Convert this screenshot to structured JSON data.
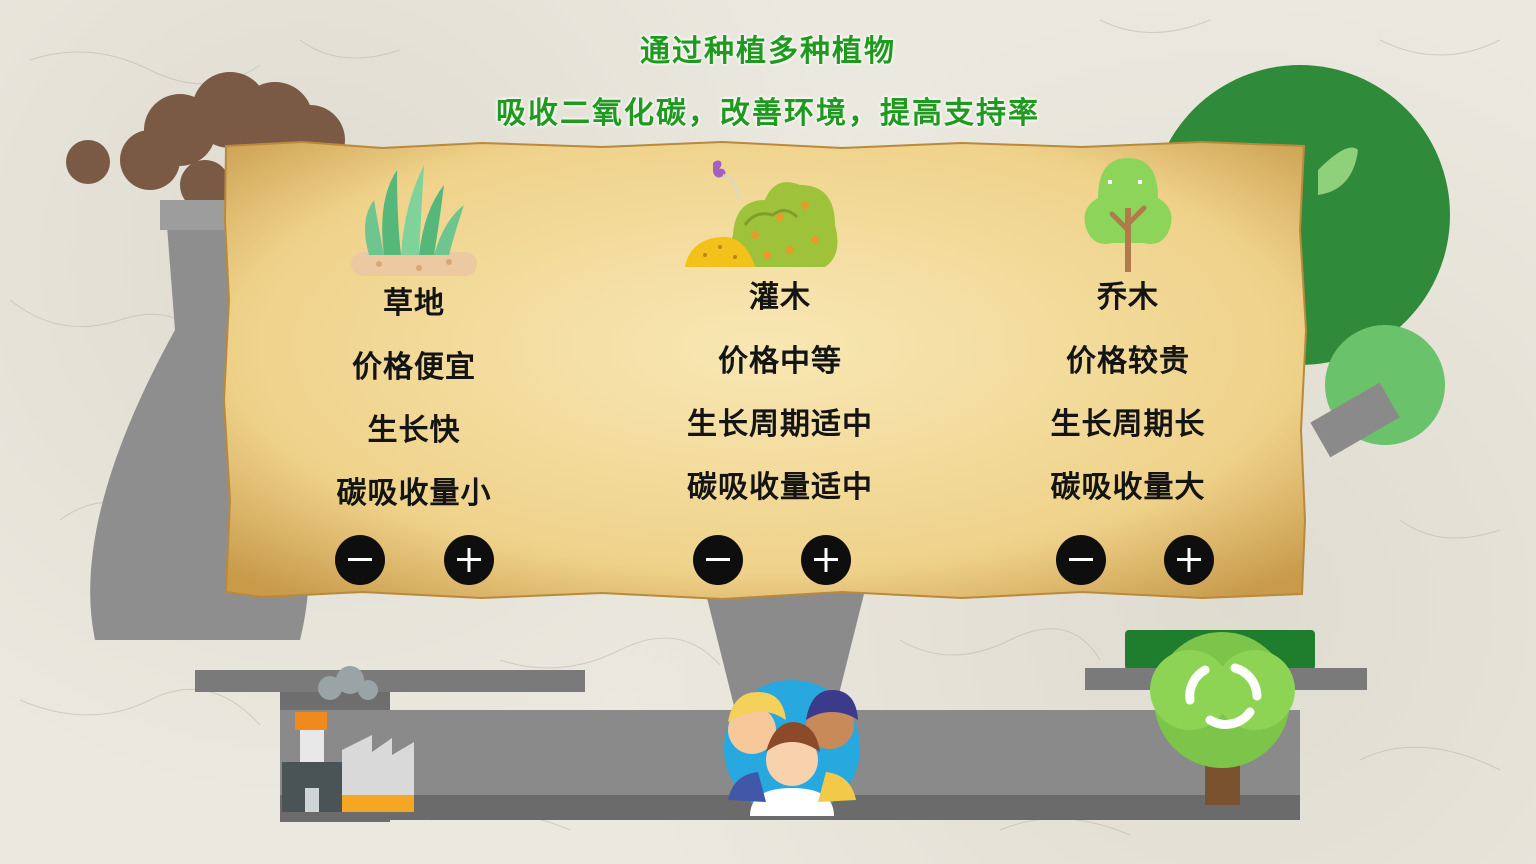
{
  "title": {
    "line1": "通过种植多种植物",
    "line2": "吸收二氧化碳，改善环境，提高支持率"
  },
  "colors": {
    "title_green": "#1f9a1f",
    "board_paper": "#f2dc9a",
    "button": "#0e0e0e"
  },
  "plants": [
    {
      "name": "草地",
      "price": "价格便宜",
      "growth": "生长快",
      "absorption": "碳吸收量小",
      "icon": "grass-icon",
      "minus_icon": "minus-icon",
      "plus_icon": "plus-icon"
    },
    {
      "name": "灌木",
      "price": "价格中等",
      "growth": "生长周期适中",
      "absorption": "碳吸收量适中",
      "icon": "shrub-icon",
      "minus_icon": "minus-icon",
      "plus_icon": "plus-icon"
    },
    {
      "name": "乔木",
      "price": "价格较贵",
      "growth": "生长周期长",
      "absorption": "碳吸收量大",
      "icon": "tree-icon",
      "minus_icon": "minus-icon",
      "plus_icon": "plus-icon"
    }
  ]
}
